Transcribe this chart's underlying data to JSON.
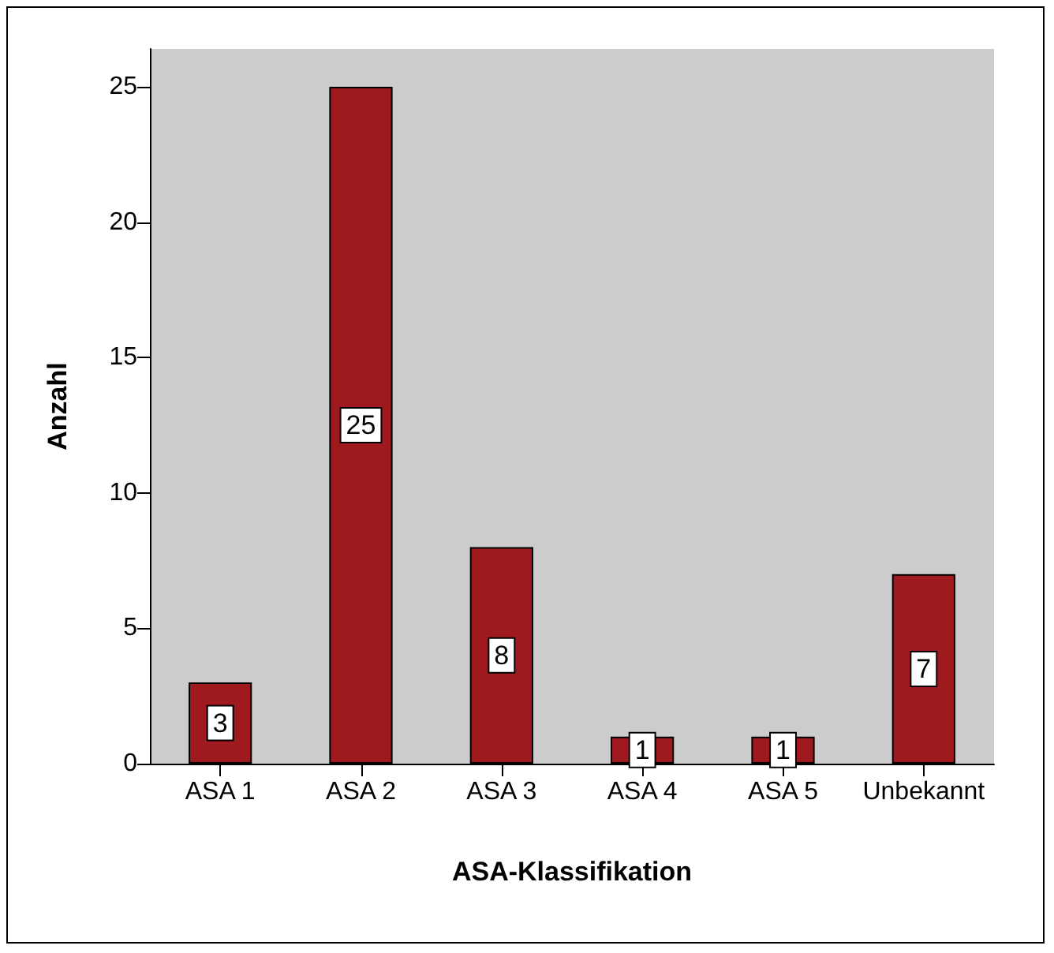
{
  "chart_data": {
    "type": "bar",
    "xlabel": "ASA-Klassifikation",
    "ylabel": "Anzahl",
    "categories": [
      "ASA 1",
      "ASA 2",
      "ASA 3",
      "ASA 4",
      "ASA 5",
      "Unbekannt"
    ],
    "values": [
      3,
      25,
      8,
      1,
      1,
      7
    ],
    "color": "#9e1a1e",
    "ylim": [
      0,
      26.4
    ],
    "yticks": [
      0,
      5,
      10,
      15,
      20,
      25
    ],
    "grid": false,
    "data_labels": true
  }
}
